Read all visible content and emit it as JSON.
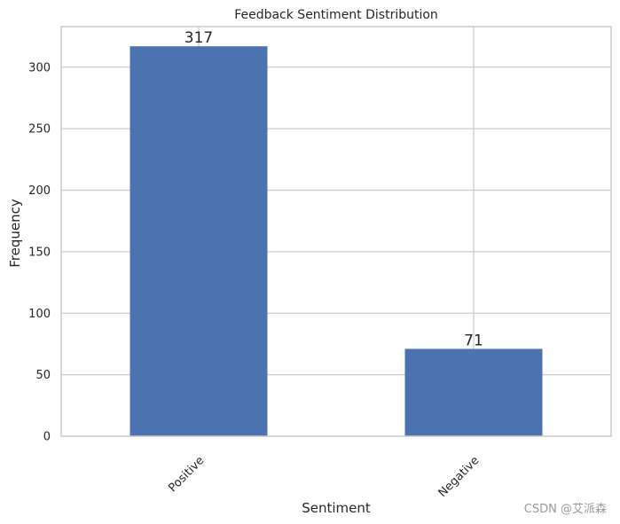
{
  "chart_data": {
    "type": "bar",
    "title": "Feedback Sentiment Distribution",
    "xlabel": "Sentiment",
    "ylabel": "Frequency",
    "categories": [
      "Positive",
      "Negative"
    ],
    "values": [
      317,
      71
    ],
    "data_labels": [
      "317",
      "71"
    ],
    "ylim": [
      0,
      333
    ],
    "yticks": [
      0,
      50,
      100,
      150,
      200,
      250,
      300
    ],
    "ytick_labels": [
      "0",
      "50",
      "100",
      "150",
      "200",
      "250",
      "300"
    ],
    "grid": true,
    "legend": "none",
    "bar_color": "#4c72b0",
    "grid_color": "#cccccc",
    "axis_color": "#cccccc"
  },
  "watermark": "CSDN @艾派森"
}
